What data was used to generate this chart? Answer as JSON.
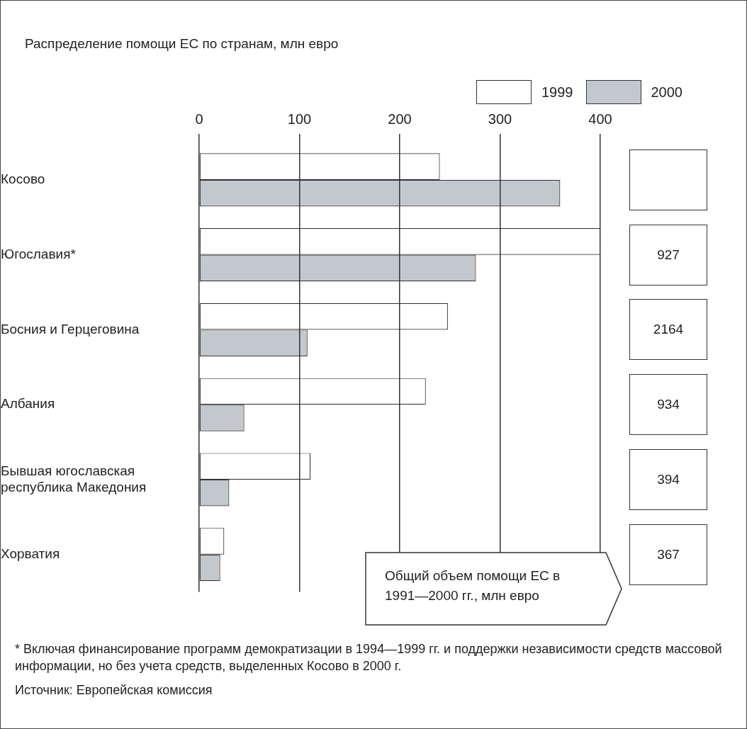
{
  "chart_data": {
    "type": "bar",
    "orientation": "horizontal",
    "title": "Распределение помощи ЕС по странам, млн евро",
    "categories": [
      "Косово",
      "Югославия*",
      "Босния и Герцеговина",
      "Албания",
      "Бывшая югославская республика Македония",
      "Хорватия"
    ],
    "series": [
      {
        "name": "1999",
        "color": "#ffffff",
        "values": [
          240,
          400,
          248,
          226,
          111,
          25
        ]
      },
      {
        "name": "2000",
        "color": "#c3c8cc",
        "values": [
          360,
          276,
          108,
          45,
          30,
          21
        ]
      }
    ],
    "xlim": [
      0,
      400
    ],
    "xticks": [
      0,
      100,
      200,
      300,
      400
    ],
    "grid": "x",
    "legend": "top right",
    "annotations": [
      "927",
      "2164",
      "934",
      "394",
      "367",
      "Общий объем помощи ЕС в 1991—2000 гг., млн евро",
      "* Включая финансирование программ демократизации в 1994—1999 гг. и поддержки независимости средств массовой информации, но без учета средств, выделенных Косово в 2000 г.",
      "Источник: Европейская комиссия"
    ]
  }
}
